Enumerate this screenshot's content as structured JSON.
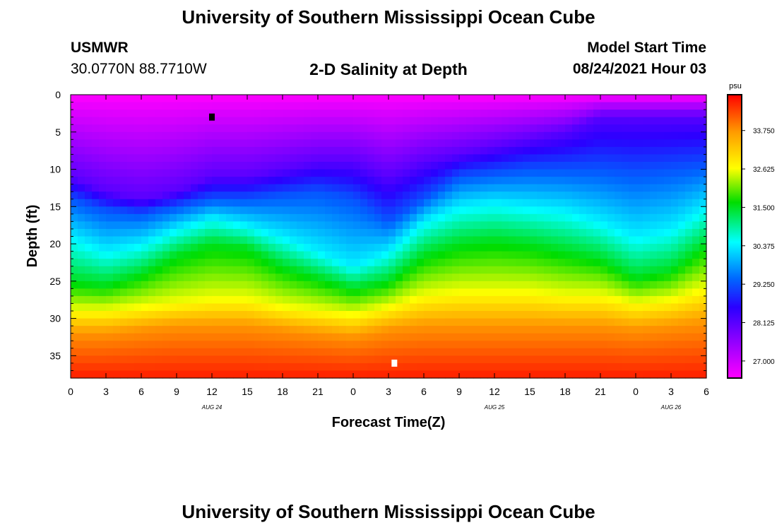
{
  "header": {
    "title_top": "University of Southern Mississippi Ocean Cube",
    "title_bottom": "University of Southern Mississippi Ocean Cube",
    "station": "USMWR",
    "coords": "30.0770N  88.7710W",
    "plot_title": "2-D Salinity at Depth",
    "model_start_label": "Model Start Time",
    "model_start_value": "08/24/2021 Hour 03"
  },
  "chart_data": {
    "type": "heatmap",
    "title": "2-D Salinity at Depth",
    "xlabel": "Forecast Time(Z)",
    "ylabel": "Depth (ft)",
    "x_range_hours": [
      0,
      54
    ],
    "ylim": [
      0,
      38
    ],
    "x_tick_hours": [
      0,
      3,
      6,
      9,
      12,
      15,
      18,
      21,
      24,
      27,
      30,
      33,
      36,
      39,
      42,
      45,
      48,
      51,
      54
    ],
    "x_tick_labels": [
      "0",
      "3",
      "6",
      "9",
      "12",
      "15",
      "18",
      "21",
      "0",
      "3",
      "6",
      "9",
      "12",
      "15",
      "18",
      "21",
      "0",
      "3",
      "6"
    ],
    "y_ticks": [
      0,
      5,
      10,
      15,
      20,
      25,
      30,
      35
    ],
    "y_tick_labels": [
      "0",
      "5",
      "10",
      "15",
      "20",
      "25",
      "30",
      "35"
    ],
    "date_labels": [
      {
        "hour": 12,
        "text": "AUG 24"
      },
      {
        "hour": 36,
        "text": "AUG 25"
      },
      {
        "hour": 51,
        "text": "AUG 26"
      }
    ],
    "colorbar": {
      "unit": "psu",
      "min": 26.5,
      "max": 34.8,
      "ticks": [
        27.0,
        28.125,
        29.25,
        30.375,
        31.5,
        32.625,
        33.75
      ],
      "tick_labels": [
        "27.000",
        "28.125",
        "29.250",
        "30.375",
        "31.500",
        "32.625",
        "33.750"
      ]
    },
    "series": [
      {
        "name": "isohaline_28.125",
        "depth_by_hour": {
          "hours": [
            0,
            3,
            6,
            9,
            12,
            15,
            18,
            21,
            24,
            27,
            30,
            33,
            36,
            39,
            42,
            45,
            48,
            51,
            54
          ],
          "depth": [
            11,
            13,
            14,
            13,
            11,
            11,
            10,
            9,
            9,
            11,
            9,
            8,
            7,
            6,
            5,
            3,
            3,
            3,
            3
          ]
        }
      },
      {
        "name": "isohaline_29.250",
        "depth_by_hour": {
          "hours": [
            0,
            3,
            6,
            9,
            12,
            15,
            18,
            21,
            24,
            27,
            30,
            33,
            36,
            39,
            42,
            45,
            48,
            51,
            54
          ],
          "depth": [
            14,
            15.5,
            16,
            15,
            14,
            14,
            13.5,
            13,
            14,
            17,
            14,
            11,
            10.5,
            10,
            10,
            10,
            10.5,
            10,
            9.5
          ]
        }
      },
      {
        "name": "isohaline_30.375",
        "depth_by_hour": {
          "hours": [
            0,
            3,
            6,
            9,
            12,
            15,
            18,
            21,
            24,
            27,
            30,
            33,
            36,
            39,
            42,
            45,
            48,
            51,
            54
          ],
          "depth": [
            19,
            21,
            20,
            18,
            16.5,
            17.5,
            19,
            21,
            23,
            21,
            17,
            15,
            14.5,
            15,
            15.5,
            17,
            19,
            18,
            15
          ]
        }
      },
      {
        "name": "isohaline_31.500",
        "depth_by_hour": {
          "hours": [
            0,
            3,
            6,
            9,
            12,
            15,
            18,
            21,
            24,
            27,
            30,
            33,
            36,
            39,
            42,
            45,
            48,
            51,
            54
          ],
          "depth": [
            25,
            25.5,
            24,
            21.5,
            20,
            20.5,
            23,
            24.5,
            26,
            25,
            21.5,
            20,
            19.5,
            20,
            21,
            22,
            24.5,
            23.5,
            20
          ]
        }
      },
      {
        "name": "isohaline_32.625",
        "depth_by_hour": {
          "hours": [
            0,
            3,
            6,
            9,
            12,
            15,
            18,
            21,
            24,
            27,
            30,
            33,
            36,
            39,
            42,
            45,
            48,
            51,
            54
          ],
          "depth": [
            29,
            29,
            28.5,
            28,
            27.5,
            27.5,
            28.5,
            29,
            29.5,
            28.5,
            27,
            26.5,
            26.5,
            26.5,
            27,
            27,
            28,
            27.5,
            26
          ]
        }
      },
      {
        "name": "isohaline_33.750",
        "depth_by_hour": {
          "hours": [
            0,
            3,
            6,
            9,
            12,
            15,
            18,
            21,
            24,
            27,
            30,
            33,
            36,
            39,
            42,
            45,
            48,
            51,
            54
          ],
          "depth": [
            32,
            32,
            31.5,
            31,
            31,
            31,
            31.5,
            32,
            32.5,
            31.5,
            31,
            31,
            31,
            31,
            31,
            31,
            31.5,
            31,
            30.5
          ]
        }
      }
    ],
    "markers": [
      {
        "hour": 12,
        "depth": 3,
        "color": "#000000"
      },
      {
        "hour": 27.5,
        "depth": 36,
        "color": "#ffffff"
      }
    ]
  }
}
